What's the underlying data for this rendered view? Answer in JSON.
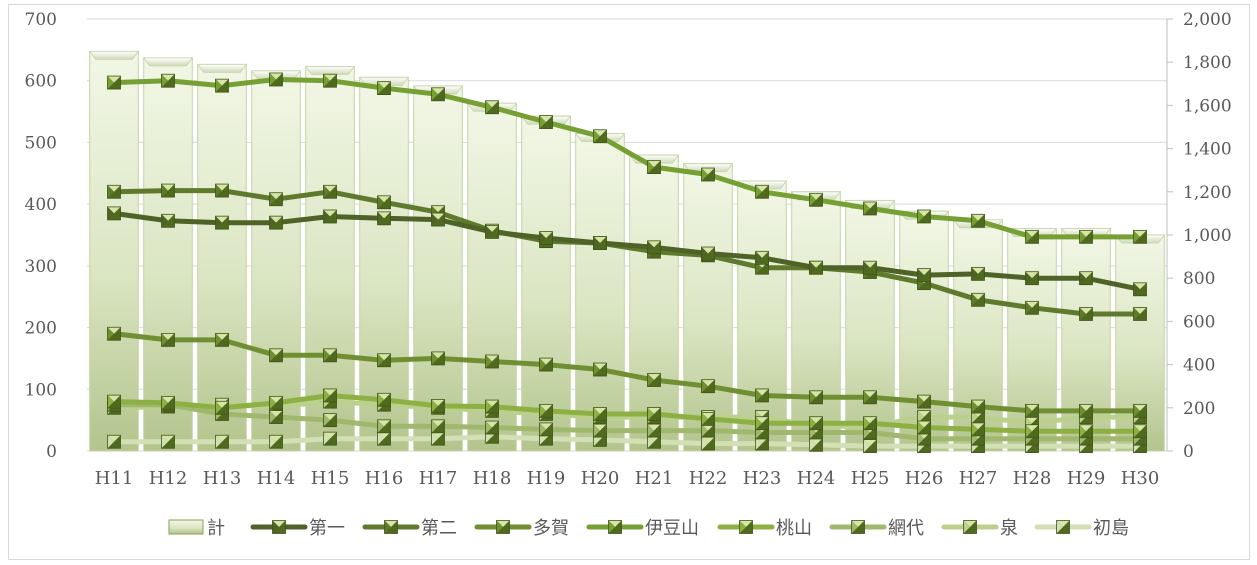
{
  "chart_data": {
    "type": "bar",
    "categories": [
      "H11",
      "H12",
      "H13",
      "H14",
      "H15",
      "H16",
      "H17",
      "H18",
      "H19",
      "H20",
      "H21",
      "H22",
      "H23",
      "H24",
      "H25",
      "H26",
      "H27",
      "H28",
      "H29",
      "H30"
    ],
    "bar_series": {
      "name": "計",
      "axis": "right",
      "values": [
        1850,
        1820,
        1790,
        1760,
        1780,
        1730,
        1690,
        1610,
        1550,
        1470,
        1370,
        1330,
        1250,
        1200,
        1160,
        1110,
        1070,
        1030,
        1030,
        1000
      ]
    },
    "series": [
      {
        "name": "第一",
        "axis": "left",
        "color": "#4f6228",
        "values": [
          385,
          373,
          370,
          370,
          380,
          377,
          375,
          355,
          345,
          337,
          330,
          320,
          313,
          297,
          297,
          285,
          287,
          280,
          280,
          262
        ]
      },
      {
        "name": "第二",
        "axis": "left",
        "color": "#5f7a2c",
        "values": [
          420,
          422,
          422,
          408,
          420,
          403,
          387,
          357,
          340,
          337,
          323,
          317,
          297,
          297,
          290,
          272,
          245,
          232,
          222,
          222
        ]
      },
      {
        "name": "多賀",
        "axis": "left",
        "color": "#6f8f32",
        "values": [
          190,
          180,
          180,
          155,
          155,
          147,
          150,
          145,
          140,
          132,
          115,
          105,
          90,
          87,
          87,
          80,
          72,
          65,
          65,
          65
        ]
      },
      {
        "name": "伊豆山",
        "axis": "left",
        "color": "#76a034",
        "values": [
          597,
          600,
          592,
          602,
          600,
          588,
          578,
          557,
          533,
          510,
          460,
          448,
          420,
          407,
          393,
          380,
          373,
          347,
          347,
          347
        ]
      },
      {
        "name": "桃山",
        "axis": "left",
        "color": "#8cb044",
        "values": [
          80,
          78,
          70,
          78,
          90,
          83,
          73,
          72,
          65,
          60,
          60,
          52,
          45,
          45,
          45,
          38,
          35,
          32,
          32,
          32
        ]
      },
      {
        "name": "網代",
        "axis": "left",
        "color": "#a0b86e",
        "values": [
          75,
          75,
          60,
          55,
          50,
          40,
          40,
          38,
          35,
          33,
          33,
          33,
          30,
          30,
          30,
          20,
          20,
          20,
          20,
          20
        ]
      },
      {
        "name": "泉",
        "axis": "left",
        "color": "#bcd08e",
        "values": [
          70,
          72,
          75,
          72,
          80,
          75,
          70,
          65,
          60,
          55,
          55,
          55,
          55,
          40,
          40,
          55,
          55,
          45,
          55,
          55
        ]
      },
      {
        "name": "初島",
        "axis": "left",
        "color": "#d3e0b6",
        "values": [
          15,
          15,
          15,
          15,
          20,
          20,
          20,
          23,
          20,
          18,
          15,
          12,
          12,
          10,
          8,
          8,
          8,
          8,
          8,
          8
        ]
      }
    ],
    "y_left": {
      "min": 0,
      "max": 700,
      "ticks": [
        "0",
        "100",
        "200",
        "300",
        "400",
        "500",
        "600",
        "700"
      ]
    },
    "y_right": {
      "min": 0,
      "max": 2000,
      "ticks": [
        "0",
        "200",
        "400",
        "600",
        "800",
        "1,000",
        "1,200",
        "1,400",
        "1,600",
        "1,800",
        "2,000"
      ]
    },
    "legend_position": "bottom",
    "grid": true,
    "colors": {
      "bar_light": "#f2f7e6",
      "bar_dark": "#b9cc94",
      "bar_edge": "#7f9a4c",
      "marker_light": "#d7e6a8",
      "marker_dark": "#4f6a1e",
      "grid": "#d9d9d9",
      "text": "#595959"
    }
  }
}
